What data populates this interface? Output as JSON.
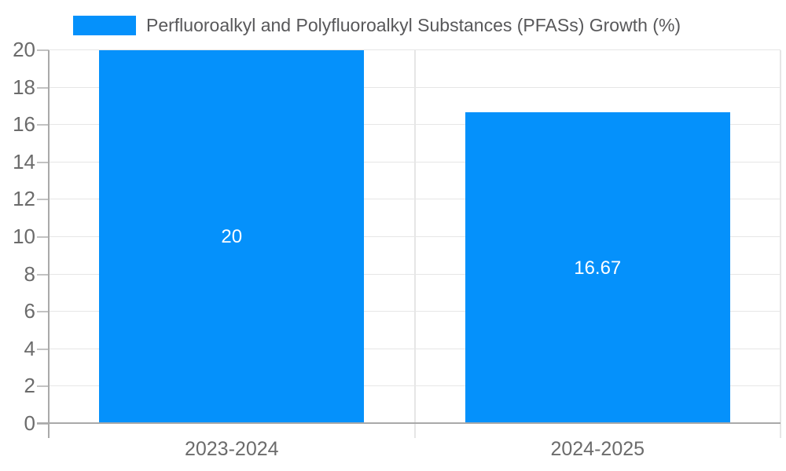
{
  "chart_data": {
    "type": "bar",
    "title": "Perfluoroalkyl and Polyfluoroalkyl Substances (PFASs) Growth (%)",
    "categories": [
      "2023-2024",
      "2024-2025"
    ],
    "values": [
      20,
      16.67
    ],
    "bar_labels": [
      "20",
      "16.67"
    ],
    "xlabel": "",
    "ylabel": "",
    "ylim": [
      0,
      20
    ],
    "ytick_step": 2,
    "ytick_labels": [
      "0",
      "2",
      "4",
      "6",
      "8",
      "10",
      "12",
      "14",
      "16",
      "18",
      "20"
    ],
    "grid": true,
    "legend_position": "top-left",
    "colors": {
      "bar": "#0591fb",
      "bar_label_text": "#ffffff",
      "gridline": "#e6e6e6",
      "axis_line": "#a9a9a9",
      "tick": "#c2c2c2",
      "axis_text": "#6b6b6b",
      "legend_text": "#58585a",
      "background": "#ffffff"
    }
  }
}
